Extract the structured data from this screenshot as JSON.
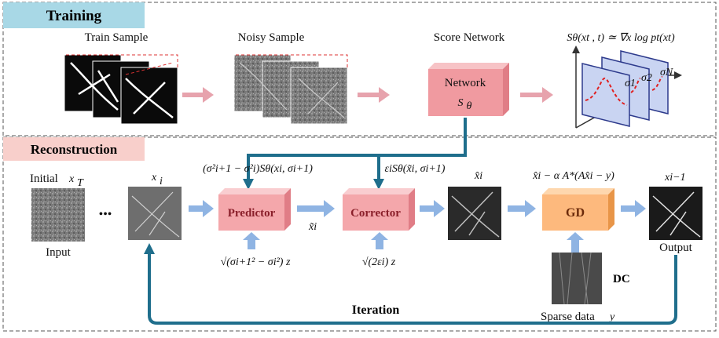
{
  "training": {
    "title": "Training",
    "train_sample_label": "Train Sample",
    "noisy_sample_label": "Noisy Sample",
    "score_network_label": "Score Network",
    "network_box_label": "Network",
    "network_symbol": "S",
    "network_symbol_sub": "θ",
    "score_equation": "Sθ(xt , t) ≃ ∇x log pt(xt)",
    "sigma_labels": [
      "σ1",
      "σ2",
      "σN"
    ]
  },
  "reconstruction": {
    "title": "Reconstruction",
    "initial_label": "Initial",
    "initial_symbol": "x",
    "initial_sub": "T",
    "input_label": "Input",
    "ellipsis": "•••",
    "xi_symbol": "x",
    "xi_sub": "i",
    "predictor_label": "Predictor",
    "corrector_label": "Corrector",
    "gd_label": "GD",
    "predictor_term": "(σ²i+1 − σ²i)Sθ(xi, σi+1)",
    "corrector_term": "εiSθ(x̃i, σi+1)",
    "predictor_noise": "√(σi+1² − σi²) z",
    "corrector_noise": "√(2εi) z",
    "x_tilde": "x̃i",
    "x_hat": "x̂i",
    "gd_term": "x̂i − α A*(Ax̂i − y)",
    "output_symbol": "xi−1",
    "output_label": "Output",
    "dc_label": "DC",
    "sparse_label": "Sparse data",
    "sparse_symbol": "y",
    "iteration_label": "Iteration"
  },
  "colors": {
    "training_header": "#a8d8e6",
    "reconstruction_header": "#f8cfcb",
    "network_box": "#f09aa0",
    "predictor_box": "#f4a7ab",
    "gd_box": "#fdb97d",
    "flow_arrow_pink": "#e7a3ad",
    "flow_arrow_blue": "#8fb4e3",
    "loop_arrow": "#1f6e8c"
  }
}
